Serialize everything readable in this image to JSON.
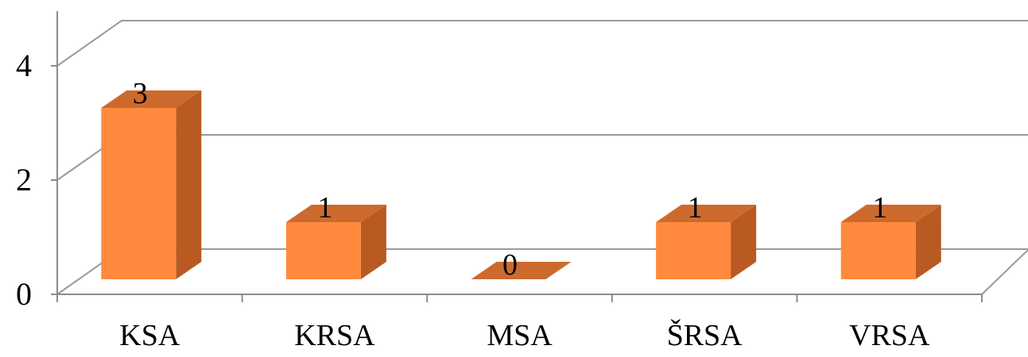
{
  "chart_data": {
    "type": "bar",
    "categories": [
      "KSA",
      "KRSA",
      "MSA",
      "ŠRSA",
      "VRSA"
    ],
    "values": [
      3,
      1,
      0,
      1,
      1
    ],
    "data_labels": [
      "3",
      "1",
      "0",
      "1",
      "1"
    ],
    "title": "",
    "xlabel": "",
    "ylabel": "",
    "ylim": [
      0,
      4
    ],
    "yticks": [
      "0",
      "2",
      "4"
    ],
    "grid": true,
    "legend": "none",
    "style": "3d-column",
    "colors": {
      "front": "#FF8A3D",
      "side": "#B85A22",
      "top": "#CC6A2E",
      "grid": "#9a9a9a",
      "axis": "#8c8c8c"
    }
  }
}
